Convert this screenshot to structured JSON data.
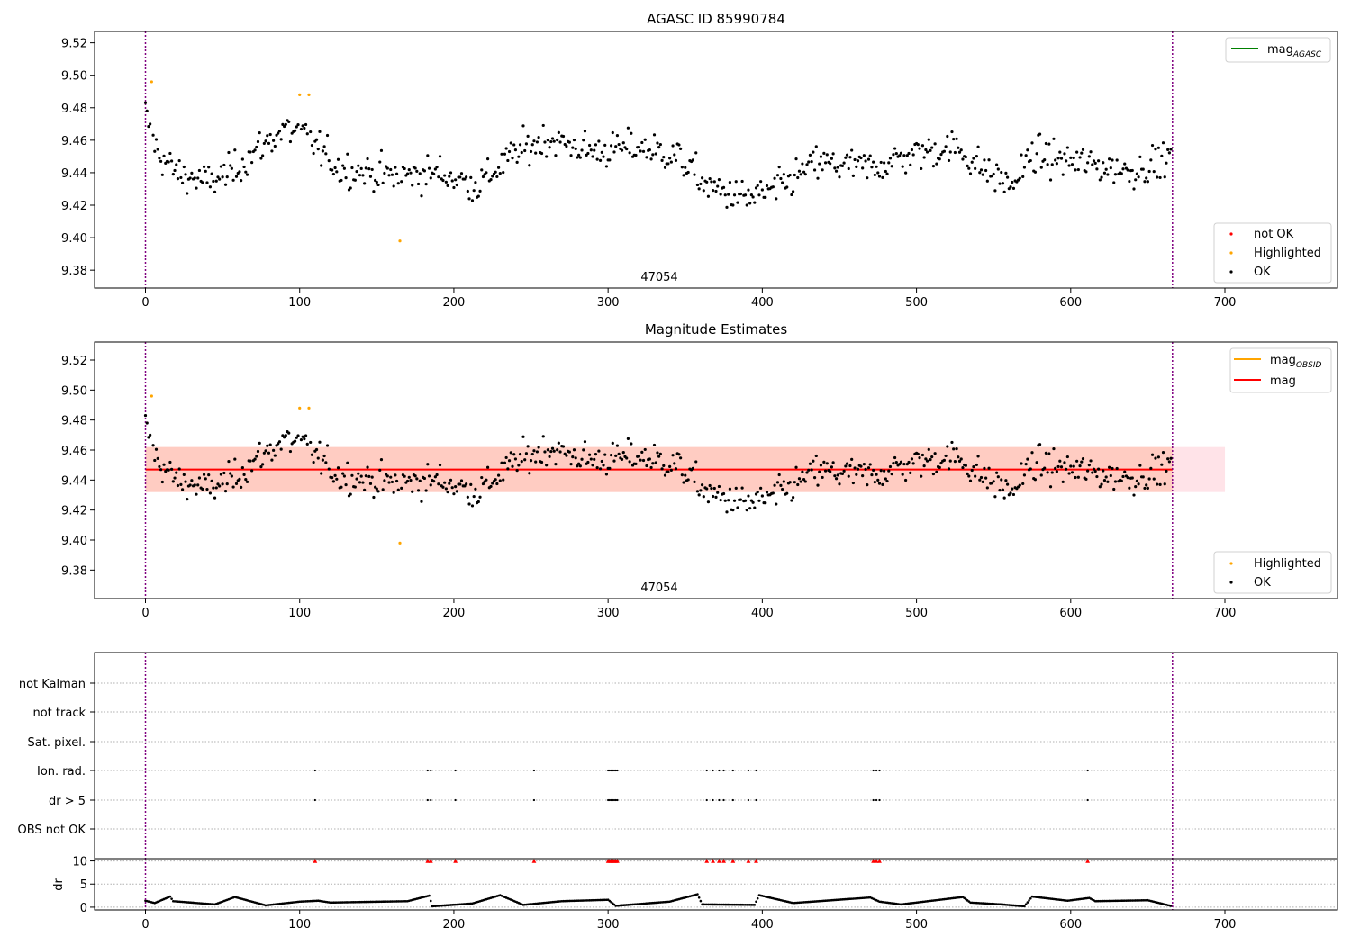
{
  "colors": {
    "ok": "#000000",
    "highlighted": "#ffa500",
    "not_ok": "#ff0000",
    "mag_agasc": "#008000",
    "mag_obsid": "#ffa500",
    "mag": "#ff0000",
    "band_outer": "#ffc0cb",
    "band_inner": "#ffa07a",
    "obsid_boundary": "#800080",
    "flag_marker": "#ff0000"
  },
  "chart_data": [
    {
      "type": "scatter",
      "title": "AGASC ID 85990784",
      "xlim": [
        -33,
        773
      ],
      "ylim": [
        9.369,
        9.527
      ],
      "xticks": [
        0,
        100,
        200,
        300,
        400,
        500,
        600,
        700
      ],
      "yticks": [
        9.38,
        9.4,
        9.42,
        9.44,
        9.46,
        9.48,
        9.5,
        9.52
      ],
      "ytick_labels": [
        "9.38",
        "9.40",
        "9.42",
        "9.44",
        "9.46",
        "9.48",
        "9.50",
        "9.52"
      ],
      "grid": false,
      "obsid_label": "47054",
      "obsid_boundaries": [
        0,
        666
      ],
      "legend_lines": {
        "placement": "top-right",
        "entries": [
          {
            "label": "mag",
            "subscript": "AGASC"
          }
        ]
      },
      "legend_points": {
        "placement": "bottom-right",
        "entries": [
          "not OK",
          "Highlighted",
          "OK"
        ]
      },
      "series": [
        {
          "name": "Highlighted",
          "points": [
            [
              4,
              9.496
            ],
            [
              100,
              9.488
            ],
            [
              106,
              9.488
            ],
            [
              165,
              9.398
            ]
          ]
        }
      ],
      "n_ok_points": 665,
      "ok_magnitude_range": [
        9.411,
        9.487
      ]
    },
    {
      "type": "scatter",
      "title": "Magnitude Estimates",
      "xlim": [
        -33,
        773
      ],
      "ylim": [
        9.361,
        9.532
      ],
      "xticks": [
        0,
        100,
        200,
        300,
        400,
        500,
        600,
        700
      ],
      "yticks": [
        9.38,
        9.4,
        9.42,
        9.44,
        9.46,
        9.48,
        9.5,
        9.52
      ],
      "ytick_labels": [
        "9.38",
        "9.40",
        "9.42",
        "9.44",
        "9.46",
        "9.48",
        "9.50",
        "9.52"
      ],
      "grid": false,
      "obsid_label": "47054",
      "obsid_boundaries": [
        0,
        666
      ],
      "mag": 9.447,
      "mag_band": [
        9.432,
        9.462
      ],
      "mag_band_x": [
        0,
        700
      ],
      "mag_obsid_band": [
        9.432,
        9.462
      ],
      "mag_obsid_band_x": [
        0,
        666
      ],
      "legend_lines": {
        "placement": "top-right",
        "entries": [
          {
            "label": "mag",
            "subscript": "OBSID"
          },
          {
            "label": "mag",
            "subscript": ""
          }
        ]
      },
      "legend_points": {
        "placement": "bottom-right",
        "entries": [
          "Highlighted",
          "OK"
        ]
      },
      "series": [
        {
          "name": "Highlighted",
          "points": [
            [
              4,
              9.496
            ],
            [
              100,
              9.488
            ],
            [
              106,
              9.488
            ],
            [
              165,
              9.398
            ]
          ]
        }
      ]
    },
    {
      "type": "scatter",
      "xlim": [
        -33,
        773
      ],
      "xticks": [
        0,
        100,
        200,
        300,
        400,
        500,
        600,
        700
      ],
      "grid": true,
      "obsid_boundaries": [
        0,
        666
      ],
      "categories": [
        "not Kalman",
        "not track",
        "Sat. pixel.",
        "Ion. rad.",
        "dr > 5",
        "OBS not OK"
      ],
      "flag_indices": [
        110,
        183,
        185,
        201,
        252,
        300,
        301,
        302,
        303,
        304,
        305,
        306,
        364,
        368,
        372,
        375,
        381,
        391,
        396,
        472,
        474,
        476,
        611
      ],
      "flagged_categories": [
        "Ion. rad.",
        "dr > 5"
      ]
    },
    {
      "type": "scatter",
      "ylabel": "dr",
      "xlim": [
        -33,
        773
      ],
      "ylim": [
        -0.6,
        10.5
      ],
      "xticks": [
        0,
        100,
        200,
        300,
        400,
        500,
        600,
        700
      ],
      "yticks": [
        0,
        5,
        10
      ],
      "ytick_labels": [
        "0",
        "5",
        "10"
      ],
      "grid": true,
      "obsid_boundaries": [
        0,
        666
      ],
      "series": [
        {
          "name": "dr > 5",
          "x": [
            110,
            183,
            185,
            201,
            252,
            300,
            301,
            302,
            303,
            304,
            305,
            306,
            364,
            368,
            372,
            375,
            381,
            391,
            396,
            472,
            474,
            476,
            611
          ],
          "y": 10
        }
      ],
      "dr_knots": [
        [
          0,
          1.4
        ],
        [
          6,
          0.9
        ],
        [
          16,
          2.3
        ],
        [
          18,
          1.3
        ],
        [
          45,
          0.6
        ],
        [
          58,
          2.2
        ],
        [
          78,
          0.4
        ],
        [
          100,
          1.2
        ],
        [
          112,
          1.4
        ],
        [
          120,
          1.0
        ],
        [
          170,
          1.3
        ],
        [
          184,
          2.5
        ],
        [
          186,
          0.2
        ],
        [
          212,
          0.8
        ],
        [
          230,
          2.6
        ],
        [
          245,
          0.5
        ],
        [
          270,
          1.3
        ],
        [
          300,
          1.6
        ],
        [
          305,
          0.3
        ],
        [
          340,
          1.2
        ],
        [
          358,
          2.8
        ],
        [
          361,
          0.6
        ],
        [
          395,
          0.5
        ],
        [
          398,
          2.6
        ],
        [
          420,
          0.9
        ],
        [
          470,
          2.1
        ],
        [
          476,
          1.2
        ],
        [
          490,
          0.6
        ],
        [
          530,
          2.2
        ],
        [
          535,
          1.0
        ],
        [
          555,
          0.6
        ],
        [
          570,
          0.2
        ],
        [
          575,
          2.3
        ],
        [
          598,
          1.4
        ],
        [
          612,
          2.0
        ],
        [
          616,
          1.3
        ],
        [
          650,
          1.5
        ],
        [
          666,
          0.2
        ]
      ],
      "dr_points_count": 666
    }
  ]
}
